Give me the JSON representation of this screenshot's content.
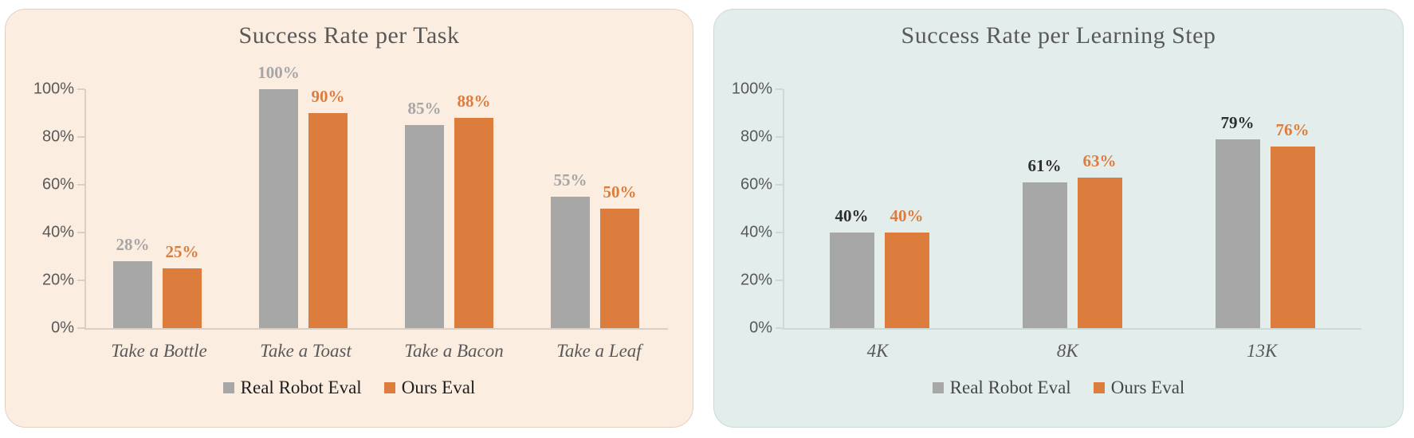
{
  "cards": [
    {
      "name": "success-rate-per-task",
      "background": "#fcede1",
      "border_color": "#e3d0c4",
      "title_color": "#595959"
    },
    {
      "name": "success-rate-per-learning-step",
      "background": "#e3edec",
      "border_color": "#cbd9d7",
      "title_color": "#595959"
    }
  ],
  "chart_data": [
    {
      "type": "bar",
      "title": "Success Rate per Task",
      "categories": [
        "Take a Bottle",
        "Take a Toast",
        "Take a Bacon",
        "Take a Leaf"
      ],
      "series": [
        {
          "name": "Real Robot Eval",
          "color": "#a7a7a7",
          "label_color": "#a6a6a6",
          "values": [
            28,
            100,
            85,
            55
          ],
          "labels": [
            "28%",
            "100%",
            "85%",
            "55%"
          ]
        },
        {
          "name": "Ours Eval",
          "color": "#dc7d3e",
          "label_color": "#dc7d3e",
          "values": [
            25,
            90,
            88,
            50
          ],
          "labels": [
            "25%",
            "90%",
            "88%",
            "50%"
          ]
        }
      ],
      "ylim": [
        0,
        100
      ],
      "yticks": [
        0,
        20,
        40,
        60,
        80,
        100
      ],
      "ytick_labels": [
        "0%",
        "20%",
        "40%",
        "60%",
        "80%",
        "100%"
      ],
      "grid": false,
      "legend_position": "bottom",
      "axis_color": "#d9cfc7",
      "tick_label_color": "#595959",
      "category_color": "#595959",
      "legend_text_color": "#1f1f1f"
    },
    {
      "type": "bar",
      "title": "Success Rate per Learning Step",
      "categories": [
        "4K",
        "8K",
        "13K"
      ],
      "series": [
        {
          "name": "Real Robot Eval",
          "color": "#a7a7a7",
          "label_color": "#2e2e2e",
          "values": [
            40,
            61,
            79
          ],
          "labels": [
            "40%",
            "61%",
            "79%"
          ]
        },
        {
          "name": "Ours Eval",
          "color": "#dc7d3e",
          "label_color": "#dc7d3e",
          "values": [
            40,
            63,
            76
          ],
          "labels": [
            "40%",
            "63%",
            "76%"
          ]
        }
      ],
      "ylim": [
        0,
        100
      ],
      "yticks": [
        0,
        20,
        40,
        60,
        80,
        100
      ],
      "ytick_labels": [
        "0%",
        "20%",
        "40%",
        "60%",
        "80%",
        "100%"
      ],
      "grid": false,
      "legend_position": "bottom",
      "axis_color": "#ccd9d7",
      "tick_label_color": "#595959",
      "category_color": "#595959",
      "legend_text_color": "#474747"
    }
  ]
}
